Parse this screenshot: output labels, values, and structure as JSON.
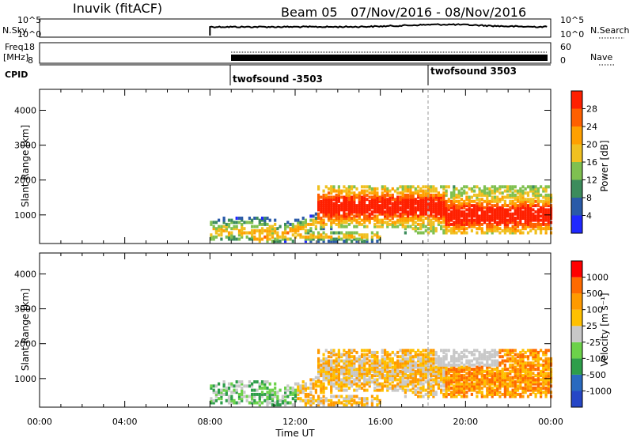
{
  "header": {
    "station": "Inuvik (fitACF)",
    "beam": "Beam 05",
    "date_range": "07/Nov/2016 - 08/Nov/2016"
  },
  "noise_panel": {
    "left_label": "N.Sky",
    "left_ticks": [
      "10^5",
      "10^0"
    ],
    "right_label": "N.Search",
    "right_ticks": [
      "10^5",
      "10^0"
    ]
  },
  "freq_panel": {
    "left_label_line1": "Freq.",
    "left_label_line2": "[MHz]",
    "left_ticks": [
      "18",
      "8"
    ],
    "right_label": "Nave",
    "right_ticks": [
      "60",
      "0"
    ]
  },
  "cpid": {
    "label": "CPID",
    "segments": [
      {
        "start": "08:00",
        "name": "twofsound -3503"
      },
      {
        "start": "18:00",
        "name": "twofsound 3503"
      }
    ]
  },
  "colors": {
    "power_scale": [
      "#1f28ff",
      "#2a5aa8",
      "#3c8c5c",
      "#7fc050",
      "#f0c020",
      "#ffa000",
      "#ff6000",
      "#ff2000"
    ],
    "velocity_scale": [
      "#ff0000",
      "#ff6a00",
      "#ff9a00",
      "#ffc000",
      "#c8c8c8",
      "#6cd24a",
      "#2e9e4a",
      "#2a6abf",
      "#2646c6"
    ]
  },
  "chart_data": [
    {
      "type": "heatmap",
      "name": "power",
      "ylabel": "Slant Range [km]",
      "yticks": [
        "1000",
        "2000",
        "3000",
        "4000"
      ],
      "ylim": [
        180,
        4600
      ],
      "colorbar_label": "Power [dB]",
      "colorbar_ticks": [
        "4",
        "8",
        "12",
        "16",
        "20",
        "24",
        "28"
      ],
      "data_start": "08:00",
      "notes_visible": "echoes 200-1800 km from 08:00 onward, strongest 500-1300 km after 14:00"
    },
    {
      "type": "heatmap",
      "name": "velocity",
      "ylabel": "Slant Range [km]",
      "yticks": [
        "1000",
        "2000",
        "3000",
        "4000"
      ],
      "ylim": [
        180,
        4600
      ],
      "colorbar_label": "Velocity [m s⁻¹]",
      "colorbar_ticks": [
        "1000",
        "500",
        "100",
        "25",
        "-25",
        "-100",
        "-500",
        "-1000"
      ],
      "xlabel": "Time UT",
      "xticks": [
        "00:00",
        "04:00",
        "08:00",
        "12:00",
        "16:00",
        "20:00",
        "00:00"
      ],
      "xlim_hours": [
        0,
        24
      ]
    }
  ]
}
